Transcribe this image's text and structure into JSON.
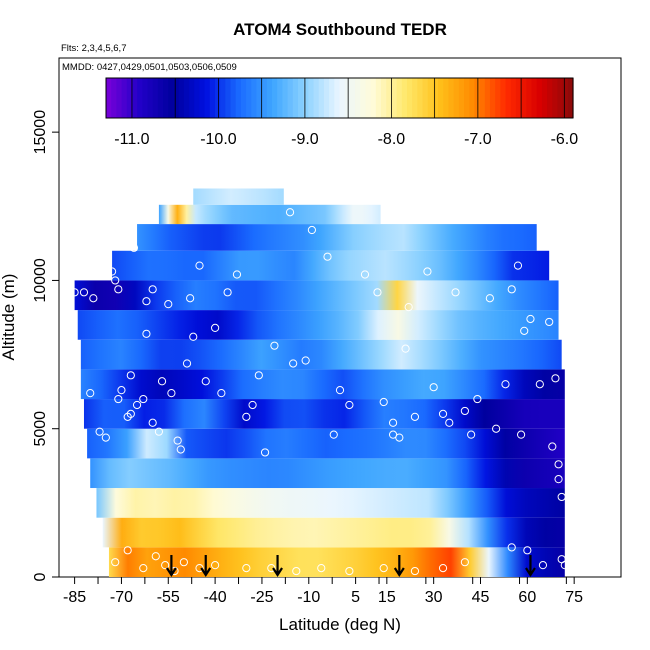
{
  "chart_data": {
    "type": "heatmap",
    "title": "ATOM4 Southbound TEDR",
    "flights_note": "Flts: 2,3,4,5,6,7",
    "dates_note": "MMDD: 0427,0429,0501,0503,0506,0509",
    "xlabel": "Latitude (deg N)",
    "ylabel": "Altitude (m)",
    "xlim": [
      -90,
      90
    ],
    "ylim": [
      0,
      17500
    ],
    "x_ticks": [
      -85,
      -70,
      -55,
      -40,
      -25,
      -10,
      5,
      15,
      30,
      45,
      60,
      75
    ],
    "x_tick_labels": [
      "-85",
      "-70",
      "-55",
      "-40",
      "-25",
      "-10",
      "5",
      "15",
      "30",
      "45",
      "60",
      "75"
    ],
    "y_ticks": [
      0,
      5000,
      10000,
      15000
    ],
    "y_tick_labels": [
      "0",
      "5000",
      "10000",
      "15000"
    ],
    "colorbar": {
      "min": -11.3,
      "max": -5.9,
      "ticks": [
        -11.0,
        -10.0,
        -9.0,
        -8.0,
        -7.0,
        -6.0
      ],
      "tick_labels": [
        "-11.0",
        "-10.0",
        "-9.0",
        "-8.0",
        "-7.0",
        "-6.0"
      ],
      "colors": [
        "#7a00d9",
        "#2200c8",
        "#00009e",
        "#0010e0",
        "#1a6bff",
        "#3fa6ff",
        "#8fd3ff",
        "#eaf6ff",
        "#fffbd9",
        "#ffe86a",
        "#ffc01a",
        "#ff8a00",
        "#ff2a00",
        "#d90000",
        "#8a0a0a"
      ],
      "grid": true
    },
    "arrow_latitudes": [
      -54,
      -43,
      -20,
      19,
      61
    ],
    "profile_bands": [
      {
        "alt": 500,
        "lat_range": [
          -74,
          72
        ],
        "values": [
          [
            -74,
            -7.7
          ],
          [
            -68,
            -7.0
          ],
          [
            -60,
            -7.3
          ],
          [
            -52,
            -7.0
          ],
          [
            -40,
            -7.3
          ],
          [
            -25,
            -7.6
          ],
          [
            -10,
            -7.8
          ],
          [
            5,
            -7.6
          ],
          [
            20,
            -7.3
          ],
          [
            35,
            -6.7
          ],
          [
            42,
            -7.6
          ],
          [
            50,
            -9.0
          ],
          [
            58,
            -10.2
          ],
          [
            66,
            -10.4
          ],
          [
            72,
            -10.6
          ]
        ]
      },
      {
        "alt": 1500,
        "lat_range": [
          -76,
          72
        ],
        "values": [
          [
            -76,
            -8.6
          ],
          [
            -70,
            -7.3
          ],
          [
            -62,
            -7.6
          ],
          [
            -52,
            -7.4
          ],
          [
            -40,
            -7.8
          ],
          [
            -25,
            -8.0
          ],
          [
            -10,
            -8.1
          ],
          [
            5,
            -8.0
          ],
          [
            20,
            -7.9
          ],
          [
            30,
            -8.0
          ],
          [
            40,
            -8.7
          ],
          [
            50,
            -9.8
          ],
          [
            60,
            -10.4
          ],
          [
            72,
            -10.6
          ]
        ]
      },
      {
        "alt": 2500,
        "lat_range": [
          -78,
          72
        ],
        "values": [
          [
            -78,
            -9.1
          ],
          [
            -70,
            -8.0
          ],
          [
            -60,
            -8.1
          ],
          [
            -50,
            -8.0
          ],
          [
            -35,
            -8.3
          ],
          [
            -20,
            -8.5
          ],
          [
            0,
            -8.6
          ],
          [
            15,
            -8.7
          ],
          [
            30,
            -8.8
          ],
          [
            45,
            -9.7
          ],
          [
            55,
            -10.3
          ],
          [
            72,
            -10.5
          ]
        ]
      },
      {
        "alt": 3500,
        "lat_range": [
          -80,
          72
        ],
        "values": [
          [
            -80,
            -9.5
          ],
          [
            -70,
            -9.0
          ],
          [
            -55,
            -9.2
          ],
          [
            -40,
            -9.5
          ],
          [
            -20,
            -9.6
          ],
          [
            0,
            -9.4
          ],
          [
            20,
            -9.3
          ],
          [
            35,
            -9.5
          ],
          [
            50,
            -10.3
          ],
          [
            60,
            -10.7
          ],
          [
            72,
            -10.8
          ]
        ]
      },
      {
        "alt": 4500,
        "lat_range": [
          -81,
          72
        ],
        "values": [
          [
            -81,
            -9.8
          ],
          [
            -70,
            -9.6
          ],
          [
            -58,
            -8.3
          ],
          [
            -52,
            -9.8
          ],
          [
            -35,
            -10.0
          ],
          [
            -20,
            -9.6
          ],
          [
            -5,
            -9.8
          ],
          [
            10,
            -9.7
          ],
          [
            25,
            -9.5
          ],
          [
            40,
            -9.9
          ],
          [
            55,
            -10.6
          ],
          [
            72,
            -10.9
          ]
        ]
      },
      {
        "alt": 5500,
        "lat_range": [
          -82,
          72
        ],
        "values": [
          [
            -82,
            -10.0
          ],
          [
            -72,
            -9.7
          ],
          [
            -60,
            -10.2
          ],
          [
            -45,
            -9.5
          ],
          [
            -30,
            -10.3
          ],
          [
            -15,
            -9.8
          ],
          [
            0,
            -10.1
          ],
          [
            15,
            -9.6
          ],
          [
            30,
            -9.8
          ],
          [
            45,
            -10.5
          ],
          [
            60,
            -10.8
          ],
          [
            72,
            -10.8
          ]
        ]
      },
      {
        "alt": 6500,
        "lat_range": [
          -83,
          72
        ],
        "values": [
          [
            -83,
            -9.6
          ],
          [
            -72,
            -9.9
          ],
          [
            -60,
            -10.4
          ],
          [
            -45,
            -10.2
          ],
          [
            -30,
            -9.7
          ],
          [
            -15,
            -9.5
          ],
          [
            0,
            -9.9
          ],
          [
            15,
            -9.5
          ],
          [
            30,
            -9.3
          ],
          [
            45,
            -9.7
          ],
          [
            60,
            -10.4
          ],
          [
            72,
            -10.6
          ]
        ]
      },
      {
        "alt": 7500,
        "lat_range": [
          -83,
          71
        ],
        "values": [
          [
            -83,
            -9.8
          ],
          [
            -70,
            -9.6
          ],
          [
            -55,
            -10.0
          ],
          [
            -40,
            -9.8
          ],
          [
            -25,
            -9.4
          ],
          [
            -10,
            -9.7
          ],
          [
            5,
            -9.2
          ],
          [
            20,
            -8.7
          ],
          [
            30,
            -9.0
          ],
          [
            45,
            -9.5
          ],
          [
            60,
            -9.7
          ],
          [
            71,
            -9.9
          ]
        ]
      },
      {
        "alt": 8500,
        "lat_range": [
          -84,
          70
        ],
        "values": [
          [
            -84,
            -9.9
          ],
          [
            -70,
            -9.7
          ],
          [
            -55,
            -10.0
          ],
          [
            -40,
            -10.3
          ],
          [
            -25,
            -9.8
          ],
          [
            -10,
            -9.5
          ],
          [
            5,
            -9.1
          ],
          [
            18,
            -8.3
          ],
          [
            25,
            -8.7
          ],
          [
            40,
            -9.2
          ],
          [
            55,
            -9.4
          ],
          [
            70,
            -9.6
          ]
        ]
      },
      {
        "alt": 9500,
        "lat_range": [
          -85,
          70
        ],
        "values": [
          [
            -85,
            -10.2
          ],
          [
            -75,
            -10.9
          ],
          [
            -60,
            -10.0
          ],
          [
            -45,
            -9.6
          ],
          [
            -30,
            -9.9
          ],
          [
            -15,
            -9.6
          ],
          [
            0,
            -9.2
          ],
          [
            12,
            -8.9
          ],
          [
            18,
            -7.6
          ],
          [
            25,
            -8.6
          ],
          [
            40,
            -9.0
          ],
          [
            55,
            -9.5
          ],
          [
            70,
            -9.8
          ]
        ]
      },
      {
        "alt": 10500,
        "lat_range": [
          -73,
          67
        ],
        "values": [
          [
            -73,
            -9.9
          ],
          [
            -60,
            -9.7
          ],
          [
            -45,
            -9.8
          ],
          [
            -30,
            -9.4
          ],
          [
            -15,
            -9.6
          ],
          [
            0,
            -9.0
          ],
          [
            15,
            -8.8
          ],
          [
            30,
            -9.1
          ],
          [
            45,
            -9.6
          ],
          [
            55,
            -10.0
          ],
          [
            67,
            -10.1
          ]
        ]
      },
      {
        "alt": 11500,
        "lat_range": [
          -65,
          63
        ],
        "values": [
          [
            -65,
            -9.5
          ],
          [
            -55,
            -9.8
          ],
          [
            -40,
            -10.0
          ],
          [
            -25,
            -9.7
          ],
          [
            -10,
            -9.5
          ],
          [
            5,
            -9.0
          ],
          [
            20,
            -8.8
          ],
          [
            35,
            -9.3
          ],
          [
            50,
            -9.7
          ],
          [
            63,
            -9.8
          ]
        ]
      },
      {
        "alt": 12300,
        "lat_range": [
          -58,
          13
        ],
        "values": [
          [
            -58,
            -9.4
          ],
          [
            -52,
            -7.3
          ],
          [
            -46,
            -8.8
          ],
          [
            -35,
            -9.2
          ],
          [
            -20,
            -9.3
          ],
          [
            -5,
            -9.1
          ],
          [
            5,
            -8.5
          ],
          [
            13,
            -8.7
          ]
        ]
      },
      {
        "alt": 12800,
        "lat_range": [
          -47,
          -18
        ],
        "values": [
          [
            -47,
            -8.9
          ],
          [
            -35,
            -8.7
          ],
          [
            -25,
            -8.8
          ],
          [
            -18,
            -8.9
          ]
        ]
      }
    ],
    "observation_points": [
      [
        -85,
        9600
      ],
      [
        -82,
        9600
      ],
      [
        -79,
        9400
      ],
      [
        -80,
        6200
      ],
      [
        -77,
        4900
      ],
      [
        -75,
        4700
      ],
      [
        -73,
        10300
      ],
      [
        -72,
        10000
      ],
      [
        -71,
        9700
      ],
      [
        -71,
        6000
      ],
      [
        -70,
        6300
      ],
      [
        -68,
        5400
      ],
      [
        -67,
        5500
      ],
      [
        -67,
        6800
      ],
      [
        -66,
        11100
      ],
      [
        -65,
        5800
      ],
      [
        -63,
        6000
      ],
      [
        -62,
        8200
      ],
      [
        -62,
        9300
      ],
      [
        -61,
        12200
      ],
      [
        -60,
        9700
      ],
      [
        -60,
        5200
      ],
      [
        -58,
        4900
      ],
      [
        -57,
        6600
      ],
      [
        -55,
        9200
      ],
      [
        -54,
        6200
      ],
      [
        -52,
        4600
      ],
      [
        -51,
        4300
      ],
      [
        -49,
        7200
      ],
      [
        -48,
        9400
      ],
      [
        -47,
        8100
      ],
      [
        -45,
        10500
      ],
      [
        -43,
        6600
      ],
      [
        -40,
        8400
      ],
      [
        -38,
        6200
      ],
      [
        -36,
        9600
      ],
      [
        -33,
        10200
      ],
      [
        -30,
        5400
      ],
      [
        -28,
        5800
      ],
      [
        -26,
        6800
      ],
      [
        -24,
        4200
      ],
      [
        -21,
        7800
      ],
      [
        -16,
        12300
      ],
      [
        -15,
        7200
      ],
      [
        -11,
        7300
      ],
      [
        -9,
        11700
      ],
      [
        -4,
        10800
      ],
      [
        -2,
        4800
      ],
      [
        0,
        6300
      ],
      [
        3,
        5800
      ],
      [
        8,
        10200
      ],
      [
        12,
        9600
      ],
      [
        14,
        5900
      ],
      [
        17,
        5200
      ],
      [
        17,
        4800
      ],
      [
        19,
        4700
      ],
      [
        21,
        7700
      ],
      [
        22,
        9100
      ],
      [
        24,
        5400
      ],
      [
        28,
        10300
      ],
      [
        30,
        6400
      ],
      [
        33,
        5500
      ],
      [
        35,
        5200
      ],
      [
        37,
        9600
      ],
      [
        40,
        5600
      ],
      [
        42,
        4800
      ],
      [
        44,
        6000
      ],
      [
        48,
        9400
      ],
      [
        50,
        5000
      ],
      [
        53,
        6500
      ],
      [
        55,
        9700
      ],
      [
        57,
        10500
      ],
      [
        58,
        4800
      ],
      [
        59,
        8300
      ],
      [
        61,
        8700
      ],
      [
        64,
        6500
      ],
      [
        67,
        8600
      ],
      [
        68,
        4400
      ],
      [
        69,
        6700
      ],
      [
        70,
        3800
      ],
      [
        70,
        3300
      ],
      [
        71,
        2700
      ],
      [
        71,
        600
      ],
      [
        72,
        400
      ],
      [
        -72,
        500
      ],
      [
        -68,
        900
      ],
      [
        -63,
        300
      ],
      [
        -59,
        700
      ],
      [
        -56,
        400
      ],
      [
        -53,
        200
      ],
      [
        -50,
        500
      ],
      [
        -45,
        300
      ],
      [
        -40,
        400
      ],
      [
        -30,
        300
      ],
      [
        -22,
        300
      ],
      [
        -14,
        200
      ],
      [
        -6,
        300
      ],
      [
        3,
        200
      ],
      [
        14,
        300
      ],
      [
        24,
        200
      ],
      [
        33,
        300
      ],
      [
        40,
        500
      ],
      [
        55,
        1000
      ],
      [
        60,
        900
      ],
      [
        65,
        400
      ]
    ]
  }
}
